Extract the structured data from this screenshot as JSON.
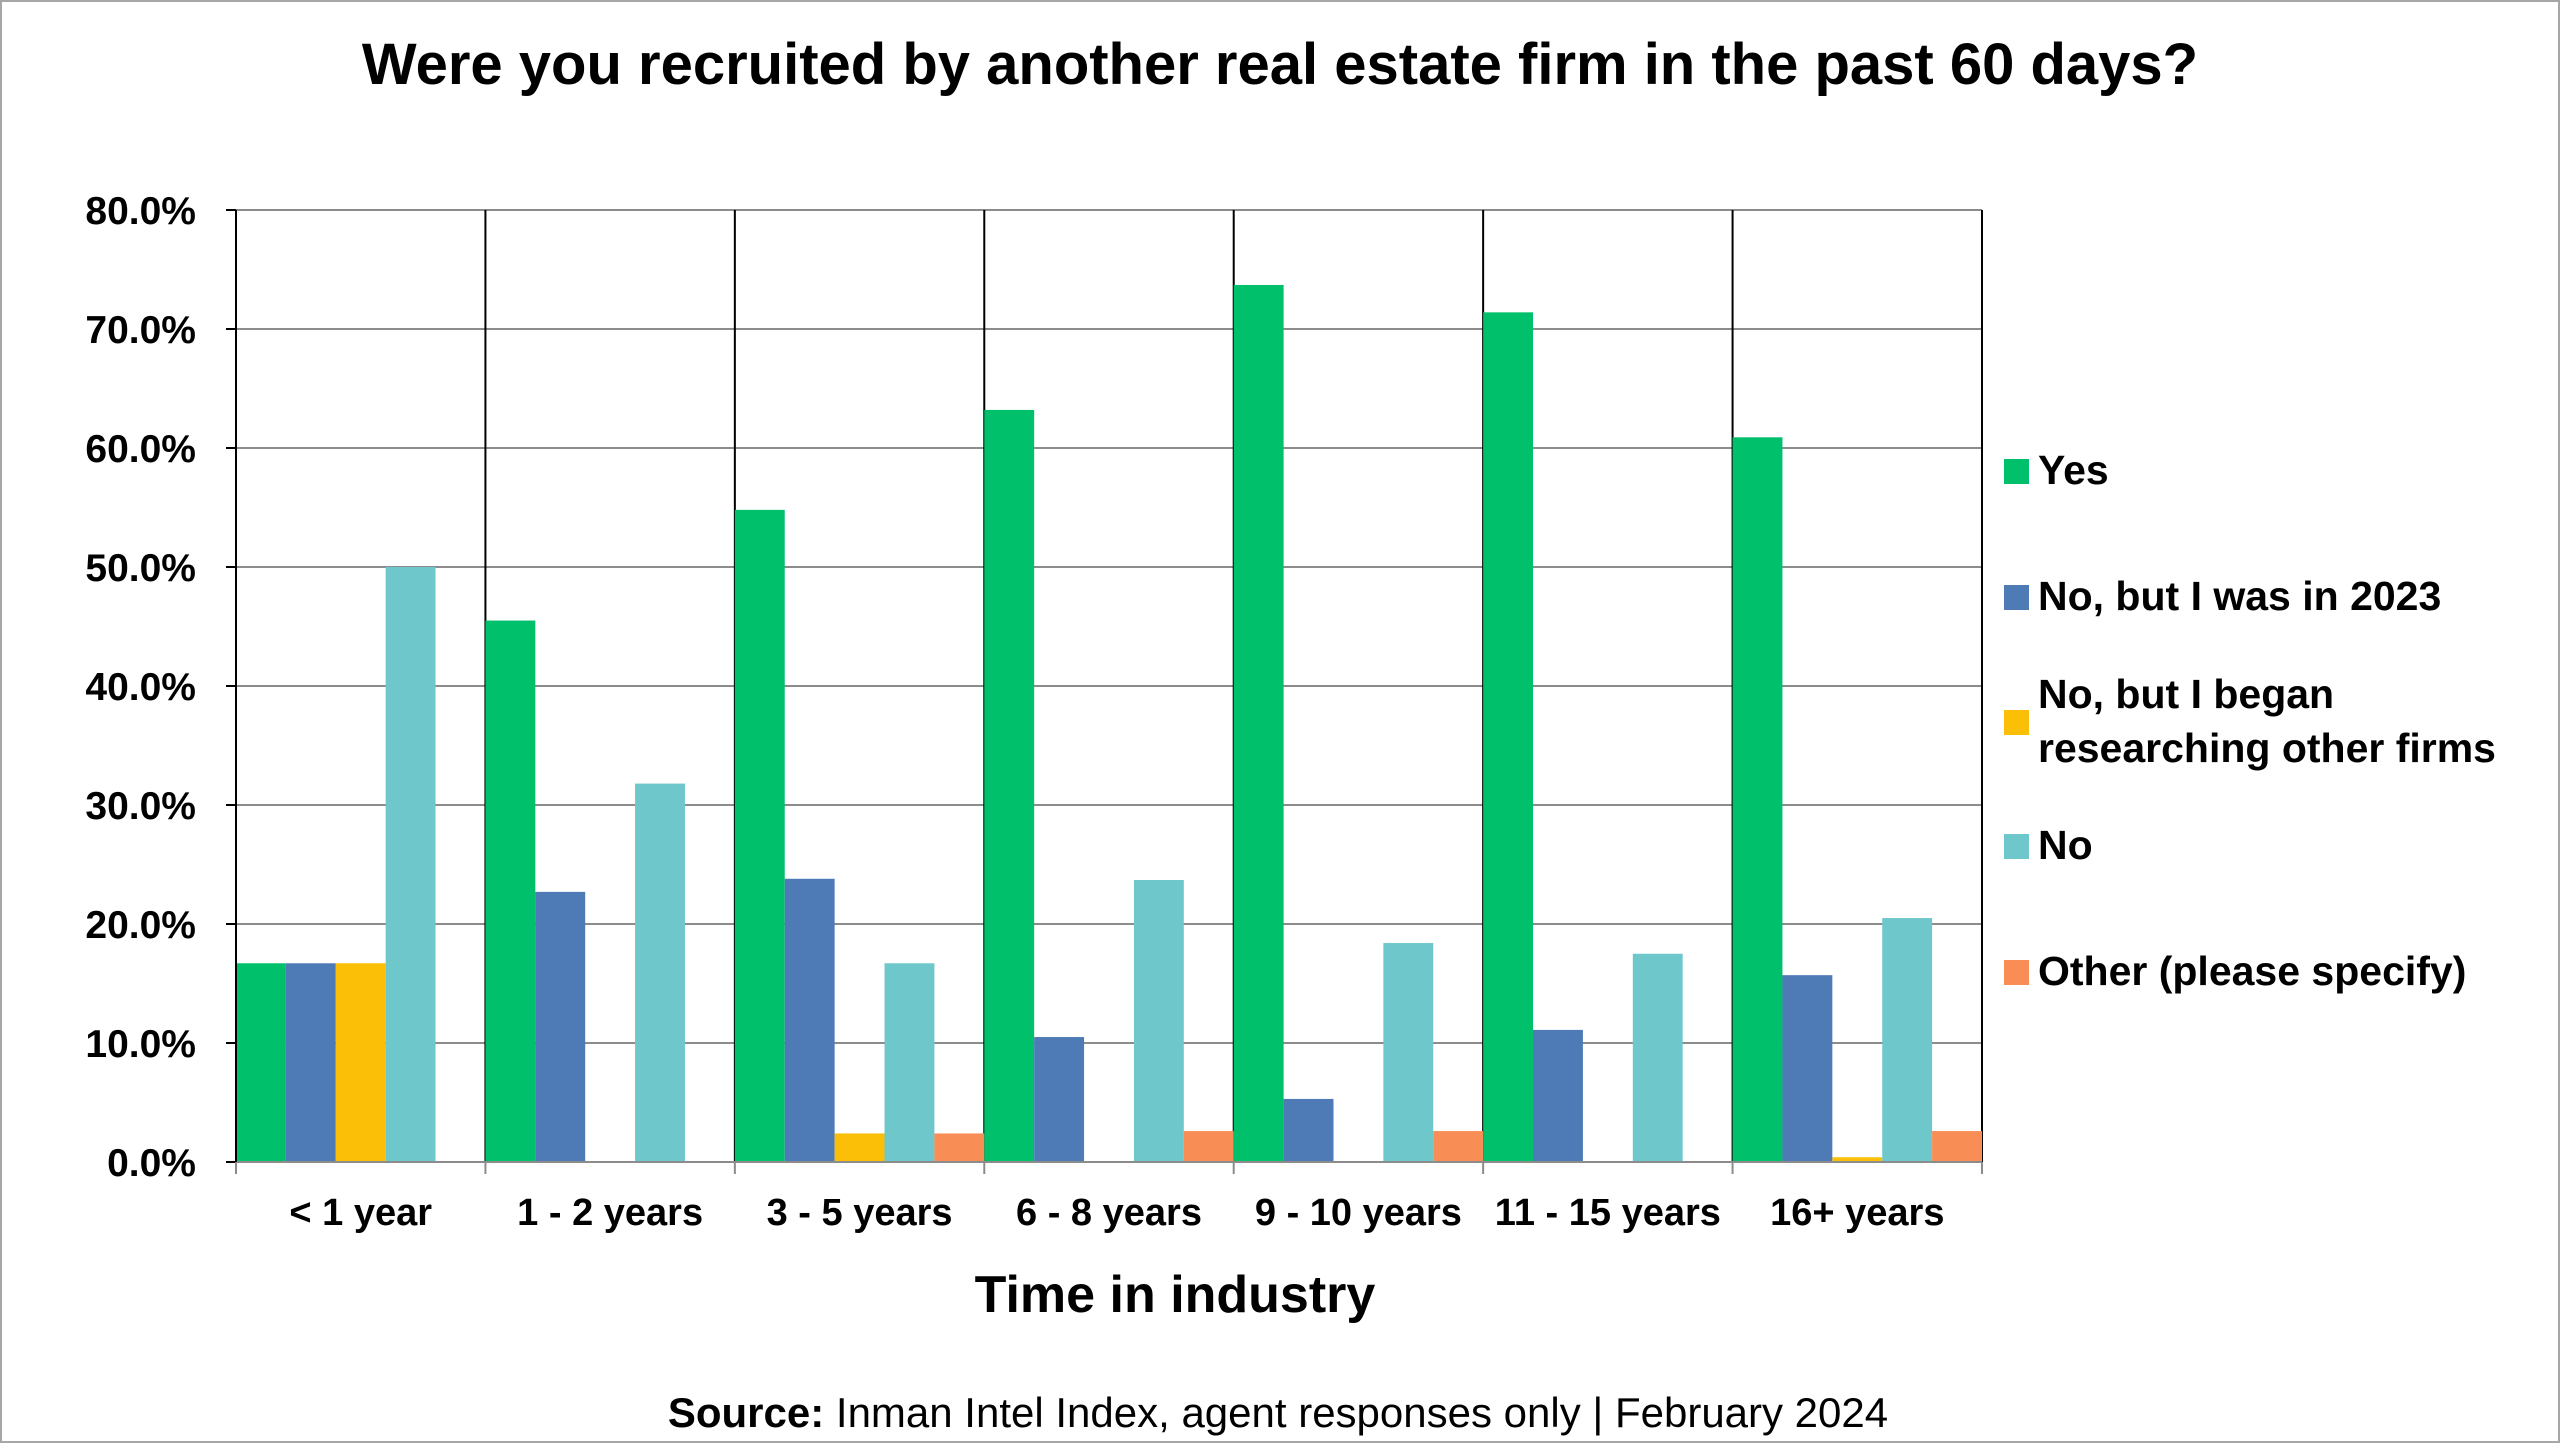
{
  "chart_data": {
    "type": "bar",
    "title": "Were you recruited by another real estate firm in the past 60 days?",
    "xlabel": "Time in industry",
    "ylabel": "",
    "ylim": [
      0,
      80
    ],
    "yticks": [
      "0.0%",
      "10.0%",
      "20.0%",
      "30.0%",
      "40.0%",
      "50.0%",
      "60.0%",
      "70.0%",
      "80.0%"
    ],
    "categories": [
      "< 1 year",
      "1 - 2 years",
      "3 - 5 years",
      "6 - 8 years",
      "9 - 10 years",
      "11 - 15 years",
      "16+ years"
    ],
    "series": [
      {
        "name": "Yes",
        "color": "#00c06b",
        "values": [
          16.7,
          45.5,
          54.8,
          63.2,
          73.7,
          71.4,
          60.9
        ]
      },
      {
        "name": "No, but I was in 2023",
        "color": "#4e7ab5",
        "values": [
          16.7,
          22.7,
          23.8,
          10.5,
          5.3,
          11.1,
          15.7
        ]
      },
      {
        "name": "No, but I began researching other firms",
        "color": "#fbbf07",
        "values": [
          16.7,
          0.0,
          2.4,
          0.0,
          0.0,
          0.0,
          0.4
        ]
      },
      {
        "name": "No",
        "color": "#6ec8cb",
        "values": [
          50.0,
          31.8,
          16.7,
          23.7,
          18.4,
          17.5,
          20.5
        ]
      },
      {
        "name": "Other (please specify)",
        "color": "#f88d55",
        "values": [
          0.0,
          0.0,
          2.4,
          2.6,
          2.6,
          0.0,
          2.6
        ]
      }
    ],
    "legend_position": "right",
    "grid": true
  },
  "source": {
    "label": "Source:",
    "text": " Inman Intel Index, agent responses only | February 2024"
  }
}
